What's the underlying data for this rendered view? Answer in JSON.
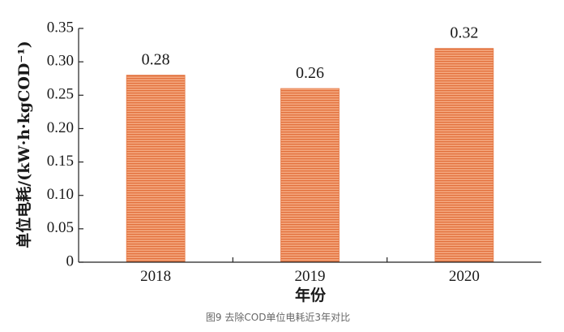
{
  "chart_data": {
    "type": "bar",
    "categories": [
      "2018",
      "2019",
      "2020"
    ],
    "values": [
      0.28,
      0.26,
      0.32
    ],
    "data_labels": [
      "0.28",
      "0.26",
      "0.32"
    ],
    "title": "",
    "caption": "图9 去除COD单位电耗近3年对比",
    "xlabel": "年份",
    "ylabel": "单位电耗/(kW·h·kgCOD⁻¹)",
    "ylim": [
      0,
      0.35
    ],
    "yticks": [
      "0",
      "0.05",
      "0.10",
      "0.15",
      "0.20",
      "0.25",
      "0.30",
      "0.35"
    ],
    "grid": false,
    "legend": "none",
    "colors": {
      "bar_fill": "#f4a77e",
      "bar_stripe": "#e2703c",
      "bar_border": "#e57a48",
      "axis": "#222222"
    }
  }
}
